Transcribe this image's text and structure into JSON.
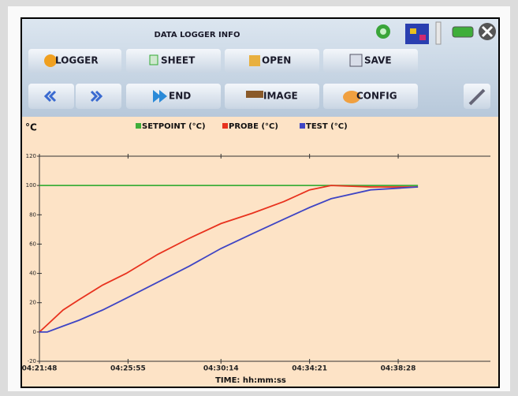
{
  "header": {
    "title": "DATA LOGGER INFO"
  },
  "buttons": {
    "row1": [
      "LOGGER",
      "SHEET",
      "OPEN",
      "SAVE"
    ],
    "row2": [
      "END",
      "IMAGE",
      "CONFIG"
    ]
  },
  "chart_data": {
    "type": "line",
    "ylabel": "°C",
    "xlabel": "TIME: hh:mm:ss",
    "x": [
      "04:21:48",
      "04:22:10",
      "04:22:54",
      "04:23:38",
      "04:24:44",
      "04:25:50",
      "04:27:18",
      "04:28:46",
      "04:30:14",
      "04:31:41",
      "04:33:09",
      "04:34:21",
      "04:35:21",
      "04:37:11",
      "04:39:23"
    ],
    "series": [
      {
        "name": "SETPOINT (°C)",
        "color": "#3fae3a",
        "values": [
          100,
          100,
          100,
          100,
          100,
          100,
          100,
          100,
          100,
          100,
          100,
          100,
          100,
          100,
          100
        ]
      },
      {
        "name": "PROBE (°C)",
        "color": "#e8321e",
        "values": [
          0,
          5,
          15,
          22,
          32,
          40,
          53,
          64,
          74,
          81,
          89,
          97,
          100,
          99,
          99
        ]
      },
      {
        "name": "TEST (°C)",
        "color": "#3f45c4",
        "values": [
          0,
          0,
          4,
          8,
          15,
          23,
          34,
          45,
          57,
          67,
          77,
          85,
          91,
          97,
          99
        ]
      }
    ],
    "xlim": [
      "04:21:48",
      "04:42:45"
    ],
    "xticks": [
      "04:21:48",
      "04:25:55",
      "04:30:14",
      "04:34:21",
      "04:38:28"
    ],
    "ylim": [
      -20,
      120
    ],
    "yticks": [
      -20,
      0,
      20,
      40,
      60,
      80,
      100,
      120
    ],
    "grid": false
  }
}
